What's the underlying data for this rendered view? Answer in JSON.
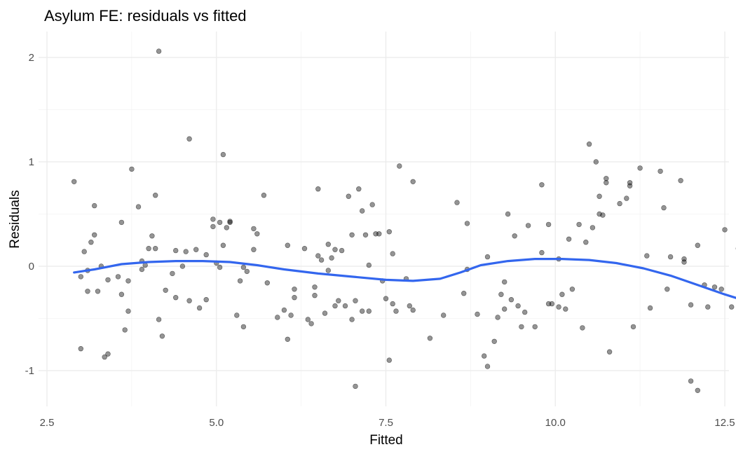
{
  "chart_data": {
    "type": "scatter",
    "title": "Asylum FE: residuals vs fitted",
    "xlabel": "Fitted",
    "ylabel": "Residuals",
    "xlim": [
      2.5,
      12.6
    ],
    "ylim": [
      -1.3,
      2.2
    ],
    "x_ticks": [
      2.5,
      5.0,
      7.5,
      10.0,
      12.5
    ],
    "x_tick_labels": [
      "2.5",
      "5.0",
      "7.5",
      "10.0",
      "12.5"
    ],
    "y_ticks": [
      -1,
      0,
      1,
      2
    ],
    "y_tick_labels": [
      "-1",
      "0",
      "1",
      "2"
    ],
    "grid": true,
    "point_color": "#000000",
    "smooth_color": "#3366ee",
    "points": [
      [
        2.9,
        0.81
      ],
      [
        3.0,
        -0.79
      ],
      [
        3.0,
        -0.1
      ],
      [
        3.05,
        0.14
      ],
      [
        3.1,
        -0.04
      ],
      [
        3.1,
        -0.24
      ],
      [
        3.15,
        0.23
      ],
      [
        3.2,
        0.58
      ],
      [
        3.2,
        0.3
      ],
      [
        3.25,
        -0.24
      ],
      [
        3.3,
        0.0
      ],
      [
        3.35,
        -0.87
      ],
      [
        3.4,
        -0.84
      ],
      [
        3.4,
        -0.13
      ],
      [
        3.55,
        -0.1
      ],
      [
        3.6,
        0.42
      ],
      [
        3.6,
        -0.27
      ],
      [
        3.65,
        -0.61
      ],
      [
        3.7,
        -0.43
      ],
      [
        3.7,
        -0.14
      ],
      [
        3.75,
        0.93
      ],
      [
        3.85,
        0.57
      ],
      [
        3.9,
        0.05
      ],
      [
        3.9,
        -0.03
      ],
      [
        3.95,
        0.01
      ],
      [
        4.0,
        0.17
      ],
      [
        4.05,
        0.29
      ],
      [
        4.1,
        0.68
      ],
      [
        4.1,
        0.17
      ],
      [
        4.15,
        2.06
      ],
      [
        4.15,
        -0.51
      ],
      [
        4.2,
        -0.67
      ],
      [
        4.25,
        -0.23
      ],
      [
        4.35,
        -0.07
      ],
      [
        4.4,
        0.15
      ],
      [
        4.4,
        -0.3
      ],
      [
        4.5,
        0.0
      ],
      [
        4.55,
        0.14
      ],
      [
        4.6,
        1.22
      ],
      [
        4.6,
        -0.33
      ],
      [
        4.7,
        0.16
      ],
      [
        4.75,
        -0.4
      ],
      [
        4.85,
        0.11
      ],
      [
        4.85,
        -0.32
      ],
      [
        4.95,
        0.45
      ],
      [
        4.95,
        0.38
      ],
      [
        5.0,
        0.03
      ],
      [
        5.05,
        -0.01
      ],
      [
        5.05,
        0.42
      ],
      [
        5.1,
        1.07
      ],
      [
        5.1,
        0.2
      ],
      [
        5.15,
        0.37
      ],
      [
        5.2,
        0.43
      ],
      [
        5.2,
        0.42
      ],
      [
        5.3,
        -0.47
      ],
      [
        5.35,
        -0.14
      ],
      [
        5.4,
        -0.01
      ],
      [
        5.4,
        -0.58
      ],
      [
        5.45,
        -0.05
      ],
      [
        5.55,
        0.36
      ],
      [
        5.55,
        0.16
      ],
      [
        5.6,
        0.31
      ],
      [
        5.7,
        0.68
      ],
      [
        5.75,
        -0.16
      ],
      [
        5.9,
        -0.49
      ],
      [
        6.0,
        -0.42
      ],
      [
        6.05,
        -0.7
      ],
      [
        6.05,
        0.2
      ],
      [
        6.1,
        -0.47
      ],
      [
        6.15,
        -0.22
      ],
      [
        6.15,
        -0.3
      ],
      [
        6.3,
        0.17
      ],
      [
        6.35,
        -0.51
      ],
      [
        6.4,
        -0.55
      ],
      [
        6.45,
        -0.28
      ],
      [
        6.45,
        -0.2
      ],
      [
        6.5,
        0.1
      ],
      [
        6.5,
        0.74
      ],
      [
        6.55,
        0.06
      ],
      [
        6.6,
        -0.45
      ],
      [
        6.65,
        0.21
      ],
      [
        6.65,
        -0.04
      ],
      [
        6.7,
        0.08
      ],
      [
        6.75,
        0.16
      ],
      [
        6.75,
        -0.38
      ],
      [
        6.8,
        -0.33
      ],
      [
        6.85,
        0.15
      ],
      [
        6.9,
        -0.38
      ],
      [
        6.95,
        0.67
      ],
      [
        7.0,
        0.3
      ],
      [
        7.0,
        -0.51
      ],
      [
        7.05,
        -0.33
      ],
      [
        7.05,
        -1.15
      ],
      [
        7.1,
        0.74
      ],
      [
        7.15,
        0.53
      ],
      [
        7.15,
        -0.43
      ],
      [
        7.2,
        0.3
      ],
      [
        7.25,
        0.01
      ],
      [
        7.25,
        -0.43
      ],
      [
        7.3,
        0.59
      ],
      [
        7.35,
        0.31
      ],
      [
        7.4,
        0.31
      ],
      [
        7.45,
        -0.14
      ],
      [
        7.5,
        -0.31
      ],
      [
        7.55,
        -0.9
      ],
      [
        7.55,
        0.33
      ],
      [
        7.6,
        0.12
      ],
      [
        7.6,
        -0.36
      ],
      [
        7.65,
        -0.43
      ],
      [
        7.7,
        0.96
      ],
      [
        7.8,
        -0.12
      ],
      [
        7.85,
        -0.38
      ],
      [
        7.9,
        -0.42
      ],
      [
        7.9,
        0.81
      ],
      [
        8.15,
        -0.69
      ],
      [
        8.35,
        -0.47
      ],
      [
        8.55,
        0.61
      ],
      [
        8.65,
        -0.26
      ],
      [
        8.7,
        0.41
      ],
      [
        8.7,
        -0.03
      ],
      [
        8.85,
        -0.46
      ],
      [
        8.95,
        -0.86
      ],
      [
        9.0,
        -0.96
      ],
      [
        9.0,
        0.09
      ],
      [
        9.1,
        -0.72
      ],
      [
        9.15,
        -0.49
      ],
      [
        9.2,
        -0.27
      ],
      [
        9.25,
        -0.15
      ],
      [
        9.25,
        -0.41
      ],
      [
        9.3,
        0.5
      ],
      [
        9.35,
        -0.32
      ],
      [
        9.4,
        0.29
      ],
      [
        9.45,
        -0.38
      ],
      [
        9.5,
        -0.58
      ],
      [
        9.55,
        -0.44
      ],
      [
        9.6,
        0.39
      ],
      [
        9.7,
        -0.58
      ],
      [
        9.8,
        0.78
      ],
      [
        9.8,
        0.13
      ],
      [
        9.9,
        0.4
      ],
      [
        9.9,
        -0.36
      ],
      [
        9.95,
        -0.36
      ],
      [
        10.05,
        0.07
      ],
      [
        10.05,
        -0.39
      ],
      [
        10.1,
        -0.27
      ],
      [
        10.15,
        -0.41
      ],
      [
        10.2,
        0.26
      ],
      [
        10.25,
        -0.22
      ],
      [
        10.35,
        0.4
      ],
      [
        10.4,
        -0.59
      ],
      [
        10.45,
        0.23
      ],
      [
        10.5,
        1.17
      ],
      [
        10.55,
        0.37
      ],
      [
        10.6,
        1.0
      ],
      [
        10.65,
        0.67
      ],
      [
        10.65,
        0.5
      ],
      [
        10.7,
        0.49
      ],
      [
        10.75,
        0.84
      ],
      [
        10.75,
        0.8
      ],
      [
        10.8,
        -0.82
      ],
      [
        10.95,
        0.6
      ],
      [
        11.05,
        0.65
      ],
      [
        11.1,
        0.8
      ],
      [
        11.1,
        0.77
      ],
      [
        11.15,
        -0.58
      ],
      [
        11.25,
        0.94
      ],
      [
        11.35,
        0.1
      ],
      [
        11.4,
        -0.4
      ],
      [
        11.55,
        0.91
      ],
      [
        11.6,
        0.56
      ],
      [
        11.65,
        -0.22
      ],
      [
        11.7,
        0.09
      ],
      [
        11.85,
        0.82
      ],
      [
        11.9,
        0.07
      ],
      [
        12.0,
        -0.37
      ],
      [
        12.1,
        0.2
      ],
      [
        12.2,
        -0.18
      ],
      [
        12.25,
        -0.39
      ],
      [
        12.35,
        -0.2
      ],
      [
        12.45,
        -0.22
      ],
      [
        12.5,
        0.35
      ],
      [
        12.6,
        -0.39
      ],
      [
        12.0,
        -1.1
      ],
      [
        12.1,
        -1.19
      ],
      [
        11.9,
        0.04
      ],
      [
        12.7,
        0.17
      ]
    ],
    "smooth": [
      [
        2.9,
        -0.06
      ],
      [
        3.2,
        -0.03
      ],
      [
        3.6,
        0.02
      ],
      [
        4.0,
        0.04
      ],
      [
        4.4,
        0.05
      ],
      [
        4.8,
        0.05
      ],
      [
        5.2,
        0.04
      ],
      [
        5.6,
        0.01
      ],
      [
        6.0,
        -0.03
      ],
      [
        6.5,
        -0.07
      ],
      [
        7.0,
        -0.1
      ],
      [
        7.5,
        -0.13
      ],
      [
        7.9,
        -0.14
      ],
      [
        8.3,
        -0.12
      ],
      [
        8.6,
        -0.06
      ],
      [
        8.9,
        0.01
      ],
      [
        9.3,
        0.05
      ],
      [
        9.7,
        0.07
      ],
      [
        10.1,
        0.07
      ],
      [
        10.5,
        0.06
      ],
      [
        10.9,
        0.03
      ],
      [
        11.3,
        -0.02
      ],
      [
        11.7,
        -0.09
      ],
      [
        12.1,
        -0.18
      ],
      [
        12.5,
        -0.27
      ],
      [
        12.7,
        -0.31
      ]
    ]
  }
}
